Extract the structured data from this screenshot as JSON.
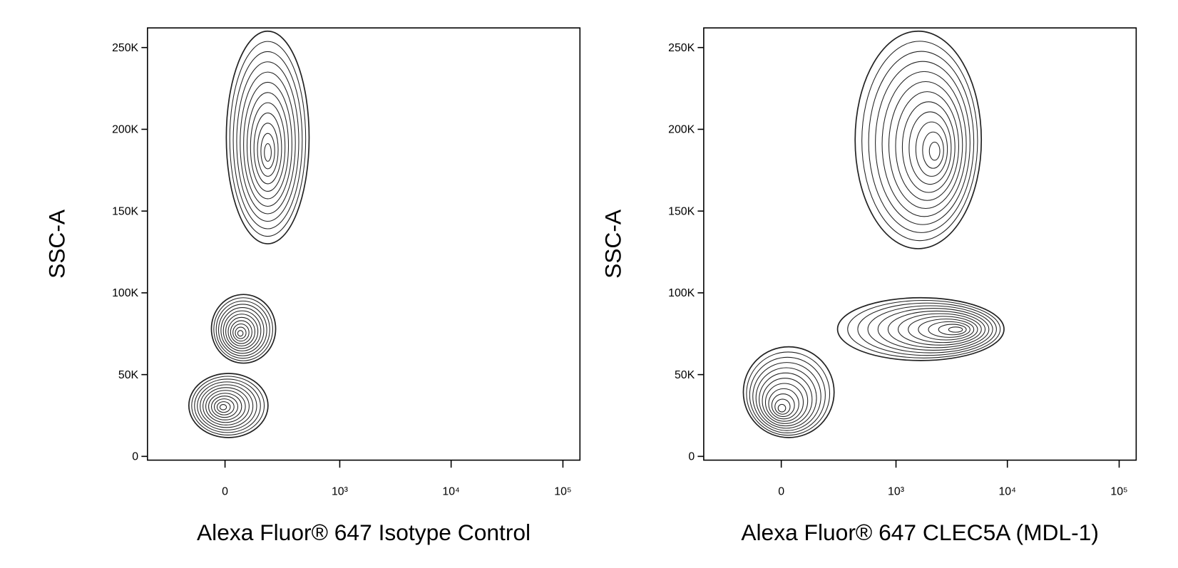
{
  "chart_data": [
    {
      "type": "contour",
      "x_label": "Alexa Fluor® 647 Isotype Control",
      "y_label": "SSC-A",
      "xscale": "arcsinh",
      "arcsinh_cofactor": 190,
      "color": "#222222",
      "xlim": [
        -450,
        142000
      ],
      "ylim": [
        -2300,
        262000
      ],
      "xticks": [
        0,
        {
          "value": 1000,
          "label": "10³"
        },
        {
          "value": 10000,
          "label": "10⁴"
        },
        {
          "value": 100000,
          "label": "10⁵"
        }
      ],
      "yticks": [
        0,
        {
          "value": 50000,
          "label": "50K"
        },
        {
          "value": 100000,
          "label": "100K"
        },
        {
          "value": 150000,
          "label": "150K"
        },
        {
          "value": 200000,
          "label": "200K"
        },
        {
          "value": 250000,
          "label": "250K"
        }
      ],
      "populations": [
        {
          "x": 190,
          "x_low": 5,
          "x_high": 520,
          "y": 185000,
          "y_low": 130000,
          "y_high": 260000
        },
        {
          "x": 60,
          "x_low": -54,
          "x_high": 236,
          "y": 75000,
          "y_low": 57000,
          "y_high": 99000
        },
        {
          "x": -9,
          "x_low": -155,
          "x_high": 191,
          "y": 30000,
          "y_low": 11500,
          "y_high": 50700
        }
      ]
    },
    {
      "type": "contour",
      "x_label": "Alexa Fluor® 647 CLEC5A (MDL-1)",
      "y_label": "SSC-A",
      "xscale": "arcsinh",
      "arcsinh_cofactor": 190,
      "color": "#222222",
      "xlim": [
        -450,
        142000
      ],
      "ylim": [
        -2300,
        262000
      ],
      "xticks": [
        0,
        {
          "value": 1000,
          "label": "10³"
        },
        {
          "value": 10000,
          "label": "10⁴"
        },
        {
          "value": 100000,
          "label": "10⁵"
        }
      ],
      "yticks": [
        0,
        {
          "value": 50000,
          "label": "50K"
        },
        {
          "value": 100000,
          "label": "100K"
        },
        {
          "value": 150000,
          "label": "150K"
        },
        {
          "value": 200000,
          "label": "200K"
        },
        {
          "value": 250000,
          "label": "250K"
        }
      ],
      "populations": [
        {
          "x": 2300,
          "x_low": 414,
          "x_high": 5850,
          "y": 186000,
          "y_low": 127000,
          "y_high": 260000
        },
        {
          "x": 3670,
          "x_low": 273,
          "x_high": 9330,
          "y": 77500,
          "y_low": 58600,
          "y_high": 97000
        },
        {
          "x": 0,
          "x_low": -164,
          "x_high": 250,
          "y": 28600,
          "y_low": 11500,
          "y_high": 67000
        }
      ]
    }
  ]
}
